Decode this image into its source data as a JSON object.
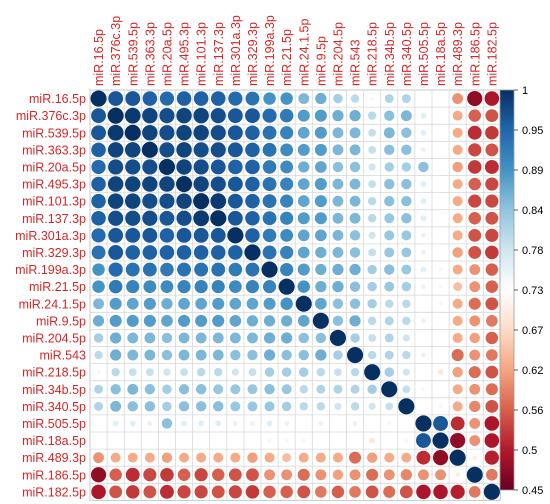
{
  "chart_data": {
    "type": "heatmap",
    "subtype": "correlation-circle-matrix",
    "labels": [
      "miR.16.5p",
      "miR.376c.3p",
      "miR.539.5p",
      "miR.363.3p",
      "miR.20a.5p",
      "miR.495.3p",
      "miR.101.3p",
      "miR.137.3p",
      "miR.301a.3p",
      "miR.329.3p",
      "miR.199a.3p",
      "miR.21.5p",
      "miR.24.1.5p",
      "miR.9.5p",
      "miR.204.5p",
      "miR.543",
      "miR.218.5p",
      "miR.34b.5p",
      "miR.340.5p",
      "miR.505.5p",
      "miR.18a.5p",
      "miR.489.3p",
      "miR.186.5p",
      "miR.182.5p"
    ],
    "values": [
      [
        1.0,
        0.96,
        0.96,
        0.95,
        0.94,
        0.95,
        0.95,
        0.95,
        0.94,
        0.93,
        0.89,
        0.89,
        0.85,
        0.86,
        0.82,
        0.8,
        0.74,
        0.81,
        0.81,
        0.72,
        0.72,
        0.6,
        0.48,
        0.5
      ],
      [
        0.96,
        1.0,
        0.99,
        0.98,
        0.97,
        0.98,
        0.98,
        0.97,
        0.96,
        0.96,
        0.94,
        0.92,
        0.88,
        0.88,
        0.86,
        0.86,
        0.8,
        0.84,
        0.85,
        0.76,
        0.72,
        0.62,
        0.56,
        0.55
      ],
      [
        0.96,
        0.99,
        1.0,
        0.98,
        0.97,
        0.98,
        0.98,
        0.97,
        0.96,
        0.95,
        0.93,
        0.91,
        0.87,
        0.88,
        0.85,
        0.85,
        0.79,
        0.85,
        0.84,
        0.76,
        0.72,
        0.62,
        0.52,
        0.53
      ],
      [
        0.95,
        0.98,
        0.98,
        1.0,
        0.97,
        0.98,
        0.97,
        0.97,
        0.96,
        0.95,
        0.93,
        0.9,
        0.88,
        0.88,
        0.85,
        0.85,
        0.79,
        0.84,
        0.84,
        0.75,
        0.73,
        0.62,
        0.54,
        0.55
      ],
      [
        0.94,
        0.97,
        0.97,
        0.97,
        1.0,
        0.98,
        0.97,
        0.96,
        0.95,
        0.95,
        0.92,
        0.9,
        0.86,
        0.87,
        0.84,
        0.84,
        0.78,
        0.82,
        0.82,
        0.84,
        0.73,
        0.61,
        0.53,
        0.52
      ],
      [
        0.95,
        0.98,
        0.98,
        0.98,
        0.98,
        1.0,
        0.98,
        0.97,
        0.96,
        0.95,
        0.93,
        0.91,
        0.87,
        0.88,
        0.85,
        0.85,
        0.79,
        0.84,
        0.84,
        0.76,
        0.72,
        0.62,
        0.56,
        0.54
      ],
      [
        0.95,
        0.98,
        0.98,
        0.97,
        0.97,
        0.98,
        1.0,
        0.99,
        0.96,
        0.95,
        0.93,
        0.91,
        0.87,
        0.88,
        0.85,
        0.85,
        0.8,
        0.84,
        0.84,
        0.76,
        0.72,
        0.62,
        0.54,
        0.54
      ],
      [
        0.95,
        0.97,
        0.97,
        0.97,
        0.96,
        0.97,
        0.99,
        1.0,
        0.96,
        0.95,
        0.93,
        0.91,
        0.88,
        0.88,
        0.85,
        0.85,
        0.8,
        0.83,
        0.84,
        0.76,
        0.72,
        0.62,
        0.56,
        0.55
      ],
      [
        0.94,
        0.96,
        0.96,
        0.96,
        0.95,
        0.96,
        0.96,
        0.96,
        1.0,
        0.95,
        0.92,
        0.9,
        0.87,
        0.87,
        0.85,
        0.84,
        0.78,
        0.83,
        0.83,
        0.75,
        0.72,
        0.62,
        0.55,
        0.54
      ],
      [
        0.93,
        0.96,
        0.95,
        0.95,
        0.95,
        0.95,
        0.95,
        0.95,
        0.95,
        1.0,
        0.93,
        0.91,
        0.87,
        0.86,
        0.85,
        0.84,
        0.79,
        0.83,
        0.83,
        0.75,
        0.72,
        0.61,
        0.55,
        0.53
      ],
      [
        0.89,
        0.94,
        0.93,
        0.93,
        0.92,
        0.93,
        0.93,
        0.93,
        0.92,
        0.93,
        1.0,
        0.91,
        0.88,
        0.86,
        0.86,
        0.86,
        0.82,
        0.84,
        0.83,
        0.76,
        0.74,
        0.62,
        0.6,
        0.56
      ],
      [
        0.89,
        0.92,
        0.91,
        0.9,
        0.9,
        0.91,
        0.91,
        0.91,
        0.9,
        0.91,
        0.91,
        1.0,
        0.89,
        0.86,
        0.86,
        0.84,
        0.82,
        0.83,
        0.82,
        0.75,
        0.74,
        0.64,
        0.6,
        0.56
      ],
      [
        0.85,
        0.88,
        0.87,
        0.88,
        0.86,
        0.87,
        0.87,
        0.88,
        0.87,
        0.87,
        0.88,
        0.89,
        1.0,
        0.87,
        0.84,
        0.84,
        0.82,
        0.8,
        0.8,
        0.73,
        0.71,
        0.62,
        0.57,
        0.55
      ],
      [
        0.86,
        0.88,
        0.88,
        0.88,
        0.87,
        0.88,
        0.88,
        0.88,
        0.87,
        0.86,
        0.86,
        0.86,
        0.87,
        1.0,
        0.84,
        0.86,
        0.8,
        0.81,
        0.8,
        0.75,
        0.73,
        0.62,
        0.6,
        0.58
      ],
      [
        0.82,
        0.86,
        0.85,
        0.85,
        0.84,
        0.85,
        0.85,
        0.85,
        0.85,
        0.85,
        0.86,
        0.86,
        0.84,
        0.84,
        1.0,
        0.82,
        0.79,
        0.81,
        0.78,
        0.72,
        0.72,
        0.62,
        0.61,
        0.56
      ],
      [
        0.8,
        0.86,
        0.85,
        0.85,
        0.84,
        0.85,
        0.85,
        0.85,
        0.84,
        0.84,
        0.86,
        0.84,
        0.84,
        0.86,
        0.82,
        1.0,
        0.8,
        0.81,
        0.8,
        0.75,
        0.73,
        0.57,
        0.6,
        0.58
      ],
      [
        0.74,
        0.8,
        0.79,
        0.79,
        0.78,
        0.79,
        0.8,
        0.8,
        0.78,
        0.79,
        0.82,
        0.82,
        0.82,
        0.8,
        0.79,
        0.8,
        1.0,
        0.82,
        0.78,
        0.72,
        0.69,
        0.61,
        0.57,
        0.55
      ],
      [
        0.81,
        0.84,
        0.85,
        0.84,
        0.82,
        0.84,
        0.84,
        0.83,
        0.83,
        0.83,
        0.84,
        0.83,
        0.8,
        0.81,
        0.81,
        0.81,
        0.82,
        1.0,
        0.79,
        0.74,
        0.72,
        0.62,
        0.6,
        0.57
      ],
      [
        0.81,
        0.85,
        0.84,
        0.84,
        0.82,
        0.84,
        0.84,
        0.84,
        0.83,
        0.83,
        0.83,
        0.82,
        0.8,
        0.8,
        0.78,
        0.8,
        0.78,
        0.79,
        1.0,
        0.73,
        0.74,
        0.62,
        0.59,
        0.55
      ],
      [
        0.72,
        0.76,
        0.76,
        0.75,
        0.84,
        0.76,
        0.76,
        0.76,
        0.75,
        0.75,
        0.76,
        0.75,
        0.73,
        0.75,
        0.72,
        0.75,
        0.72,
        0.74,
        0.73,
        1.0,
        0.96,
        0.52,
        0.6,
        0.5
      ],
      [
        0.72,
        0.72,
        0.72,
        0.73,
        0.73,
        0.72,
        0.72,
        0.72,
        0.72,
        0.72,
        0.74,
        0.74,
        0.71,
        0.73,
        0.72,
        0.73,
        0.69,
        0.72,
        0.74,
        0.96,
        1.0,
        0.48,
        0.6,
        0.5
      ],
      [
        0.6,
        0.62,
        0.62,
        0.62,
        0.61,
        0.62,
        0.62,
        0.62,
        0.62,
        0.61,
        0.62,
        0.64,
        0.62,
        0.62,
        0.62,
        0.57,
        0.61,
        0.62,
        0.62,
        0.52,
        0.48,
        1.0,
        0.7,
        0.51
      ],
      [
        0.48,
        0.56,
        0.52,
        0.54,
        0.53,
        0.56,
        0.54,
        0.56,
        0.55,
        0.55,
        0.6,
        0.6,
        0.57,
        0.6,
        0.61,
        0.6,
        0.57,
        0.6,
        0.59,
        0.6,
        0.6,
        0.7,
        1.0,
        0.58
      ],
      [
        0.5,
        0.55,
        0.53,
        0.55,
        0.52,
        0.54,
        0.54,
        0.55,
        0.54,
        0.53,
        0.56,
        0.56,
        0.55,
        0.58,
        0.56,
        0.58,
        0.55,
        0.57,
        0.55,
        0.5,
        0.5,
        0.51,
        0.58,
        1.0
      ]
    ],
    "colorbar": {
      "min": 0.45,
      "max": 1,
      "ticks": [
        "1",
        "0.95",
        "0.89",
        "0.84",
        "0.78",
        "0.73",
        "0.67",
        "0.62",
        "0.56",
        "0.5",
        "0.45"
      ],
      "colors": [
        "#67001f",
        "#b2182b",
        "#d6604d",
        "#f4a582",
        "#fddbc7",
        "#ffffff",
        "#d1e5f0",
        "#92c5de",
        "#4393c3",
        "#2166ac",
        "#053061"
      ]
    },
    "label_color": "#d62728",
    "grid": true
  }
}
